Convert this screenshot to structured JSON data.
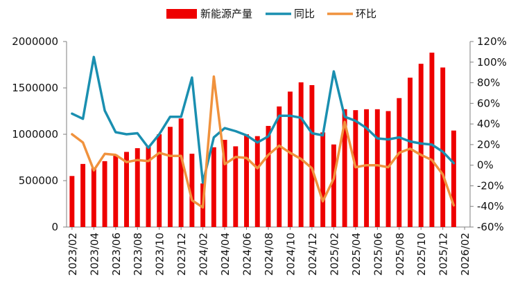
{
  "chart_data": {
    "type": "bar+line",
    "title": "",
    "categories": [
      "2023/02",
      "2023/03",
      "2023/04",
      "2023/05",
      "2023/06",
      "2023/07",
      "2023/08",
      "2023/09",
      "2023/10",
      "2023/11",
      "2023/12",
      "2024/01",
      "2024/02",
      "2024/03",
      "2024/04",
      "2024/05",
      "2024/06",
      "2024/07",
      "2024/08",
      "2024/09",
      "2024/10",
      "2024/11",
      "2024/12",
      "2025/01",
      "2025/02",
      "2025/03",
      "2025/04",
      "2025/05",
      "2025/06",
      "2025/07",
      "2025/08",
      "2025/09",
      "2025/10",
      "2025/11",
      "2025/12",
      "2026/01",
      "2026/02"
    ],
    "x_tick_labels": [
      "2023/02",
      "2023/04",
      "2023/06",
      "2023/08",
      "2023/10",
      "2023/12",
      "2024/02",
      "2024/04",
      "2024/06",
      "2024/08",
      "2024/10",
      "2024/12",
      "2025/02",
      "2025/04",
      "2025/06",
      "2025/08",
      "2025/10",
      "2025/12",
      "2026/02"
    ],
    "y_left": {
      "min": 0,
      "max": 2000000,
      "ticks": [
        "0",
        "500000",
        "1000000",
        "1500000",
        "2000000"
      ]
    },
    "y_right": {
      "min": -60,
      "max": 120,
      "ticks": [
        "-60%",
        "-40%",
        "-20%",
        "0%",
        "20%",
        "40%",
        "60%",
        "80%",
        "100%",
        "120%"
      ]
    },
    "legend": [
      "新能源产量",
      "同比",
      "环比"
    ],
    "series": [
      {
        "name": "新能源产量",
        "type": "bar",
        "axis": "left",
        "color": "#ee0000",
        "values": [
          550000,
          680000,
          640000,
          710000,
          780000,
          810000,
          850000,
          870000,
          1000000,
          1080000,
          1170000,
          790000,
          470000,
          860000,
          940000,
          870000,
          1000000,
          980000,
          1090000,
          1300000,
          1460000,
          1560000,
          1530000,
          1020000,
          890000,
          1270000,
          1260000,
          1270000,
          1270000,
          1250000,
          1390000,
          1610000,
          1760000,
          1880000,
          1720000,
          1040000,
          null
        ]
      },
      {
        "name": "同比",
        "type": "line",
        "axis": "right",
        "color": "#1a8fb0",
        "values": [
          50,
          45,
          105,
          53,
          32,
          30,
          31,
          17,
          30,
          47,
          47,
          85,
          -17,
          27,
          36,
          33,
          29,
          22,
          28,
          48,
          48,
          46,
          31,
          29,
          91,
          47,
          43,
          36,
          26,
          25,
          27,
          23,
          21,
          20,
          13,
          2,
          null
        ]
      },
      {
        "name": "环比",
        "type": "line",
        "axis": "right",
        "color": "#f0923d",
        "values": [
          30,
          22,
          -5,
          11,
          10,
          3,
          5,
          4,
          12,
          9,
          9,
          -34,
          -41,
          86,
          1,
          8,
          7,
          -3,
          10,
          19,
          12,
          6,
          -3,
          -35,
          -13,
          42,
          -2,
          0,
          0,
          -2,
          12,
          16,
          10,
          5,
          -9,
          -39,
          null
        ]
      }
    ]
  }
}
